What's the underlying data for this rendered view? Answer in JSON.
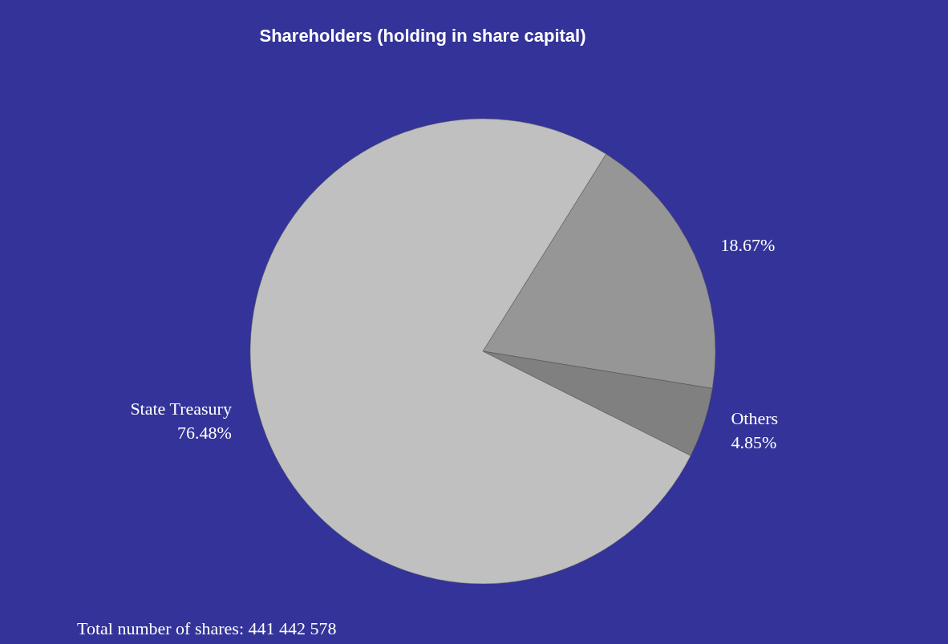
{
  "chart_data": {
    "type": "pie",
    "title": "Shareholders (holding in share capital)",
    "categories": [
      null,
      "Others",
      "State Treasury"
    ],
    "values": [
      18.67,
      4.85,
      76.48
    ],
    "value_labels": [
      "18.67%",
      "4.85%",
      "76.48%"
    ],
    "colors": [
      "#969696",
      "#808080",
      "#c0c0c0"
    ],
    "annotations": [
      "Total number of shares: 441 442 578"
    ]
  }
}
